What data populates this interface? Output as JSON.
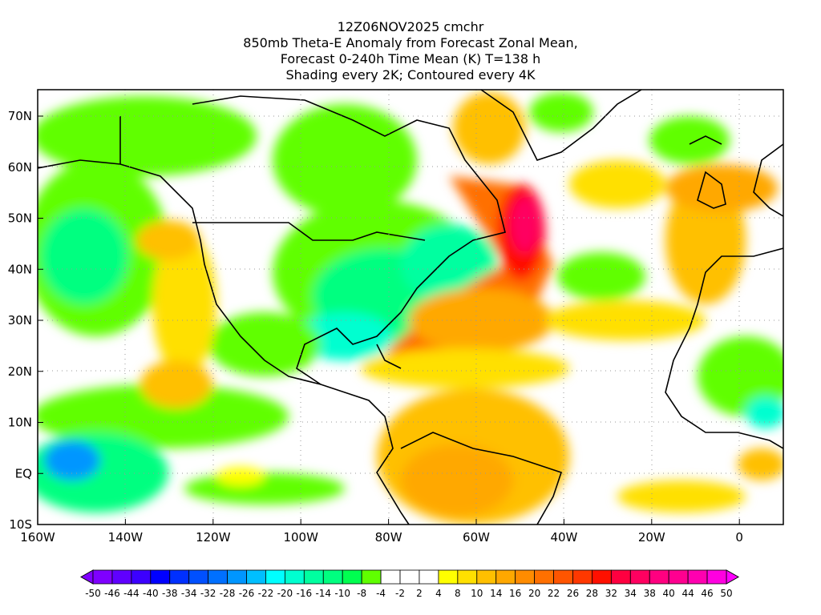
{
  "title": {
    "line1": "12Z06NOV2025 cmchr",
    "line2": "850mb Theta-E Anomaly from Forecast Zonal Mean,",
    "line3": "Forecast 0-240h Time Mean (K) T=138 h",
    "line4": "Shading every 2K; Contoured every 4K"
  },
  "axes": {
    "lon_labels": [
      "160W",
      "140W",
      "120W",
      "100W",
      "80W",
      "60W",
      "40W",
      "20W",
      "0"
    ],
    "lat_labels": [
      "70N",
      "60N",
      "50N",
      "40N",
      "30N",
      "20N",
      "10N",
      "EQ",
      "10S"
    ]
  },
  "colorbar": {
    "labels": [
      "-50",
      "-46",
      "-44",
      "-40",
      "-38",
      "-34",
      "-32",
      "-28",
      "-26",
      "-22",
      "-20",
      "-16",
      "-14",
      "-10",
      "-8",
      "-4",
      "-2",
      "2",
      "4",
      "8",
      "10",
      "14",
      "16",
      "20",
      "22",
      "26",
      "28",
      "32",
      "34",
      "38",
      "40",
      "44",
      "46",
      "50"
    ],
    "colors": [
      "#7f00ff",
      "#6000ff",
      "#3c00ff",
      "#0000ff",
      "#0030ff",
      "#0050ff",
      "#0070ff",
      "#0096ff",
      "#00bfff",
      "#00ffff",
      "#00ffd0",
      "#00ffa0",
      "#00ff80",
      "#00ff50",
      "#60ff00",
      "#ffffff",
      "#ffffff",
      "#ffffff",
      "#ffff00",
      "#ffe000",
      "#ffc000",
      "#ffa800",
      "#ff8c00",
      "#ff7000",
      "#ff5500",
      "#ff3800",
      "#ff1000",
      "#ff0040",
      "#ff0060",
      "#ff0080",
      "#ff0090",
      "#ff00b0",
      "#ff00e0"
    ],
    "under_color": "#8000ff",
    "over_color": "#ff00ff"
  }
}
